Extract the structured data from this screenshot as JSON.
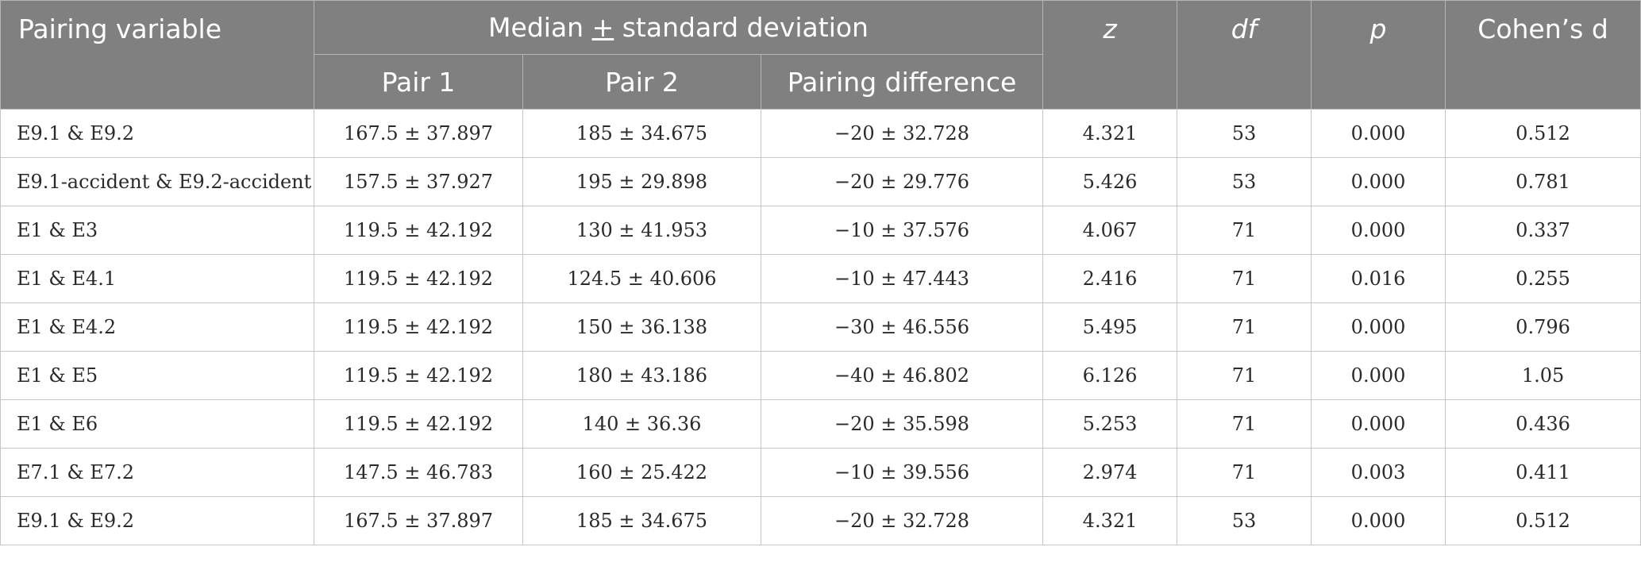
{
  "header": {
    "pairing_variable": "Pairing variable",
    "group_before": "Median ",
    "group_pm": "+",
    "group_after": " standard deviation",
    "pair1": "Pair 1",
    "pair2": "Pair 2",
    "pairing_difference": "Pairing difference",
    "z": "z",
    "df": "df",
    "p": "p",
    "cohens_d": "Cohen’s d"
  },
  "rows": [
    {
      "variable": "E9.1 & E9.2",
      "pair1": "167.5 ± 37.897",
      "pair2": "185 ± 34.675",
      "diff": "−20 ± 32.728",
      "z": "4.321",
      "df": "53",
      "p": "0.000",
      "d": "0.512"
    },
    {
      "variable": "E9.1-accident & E9.2-accident",
      "pair1": "157.5 ± 37.927",
      "pair2": "195 ± 29.898",
      "diff": "−20 ± 29.776",
      "z": "5.426",
      "df": "53",
      "p": "0.000",
      "d": "0.781"
    },
    {
      "variable": "E1 & E3",
      "pair1": "119.5 ± 42.192",
      "pair2": "130 ± 41.953",
      "diff": "−10 ± 37.576",
      "z": "4.067",
      "df": "71",
      "p": "0.000",
      "d": "0.337"
    },
    {
      "variable": "E1 & E4.1",
      "pair1": "119.5 ± 42.192",
      "pair2": "124.5 ± 40.606",
      "diff": "−10 ± 47.443",
      "z": "2.416",
      "df": "71",
      "p": "0.016",
      "d": "0.255"
    },
    {
      "variable": "E1 & E4.2",
      "pair1": "119.5 ± 42.192",
      "pair2": "150 ± 36.138",
      "diff": "−30 ± 46.556",
      "z": "5.495",
      "df": "71",
      "p": "0.000",
      "d": "0.796"
    },
    {
      "variable": "E1 & E5",
      "pair1": "119.5 ± 42.192",
      "pair2": "180 ± 43.186",
      "diff": "−40 ± 46.802",
      "z": "6.126",
      "df": "71",
      "p": "0.000",
      "d": "1.05"
    },
    {
      "variable": "E1 & E6",
      "pair1": "119.5 ± 42.192",
      "pair2": "140 ± 36.36",
      "diff": "−20 ± 35.598",
      "z": "5.253",
      "df": "71",
      "p": "0.000",
      "d": "0.436"
    },
    {
      "variable": "E7.1 & E7.2",
      "pair1": "147.5 ± 46.783",
      "pair2": "160 ± 25.422",
      "diff": "−10 ± 39.556",
      "z": "2.974",
      "df": "71",
      "p": "0.003",
      "d": "0.411"
    },
    {
      "variable": "E9.1 & E9.2",
      "pair1": "167.5 ± 37.897",
      "pair2": "185 ± 34.675",
      "diff": "−20 ± 32.728",
      "z": "4.321",
      "df": "53",
      "p": "0.000",
      "d": "0.512"
    }
  ]
}
